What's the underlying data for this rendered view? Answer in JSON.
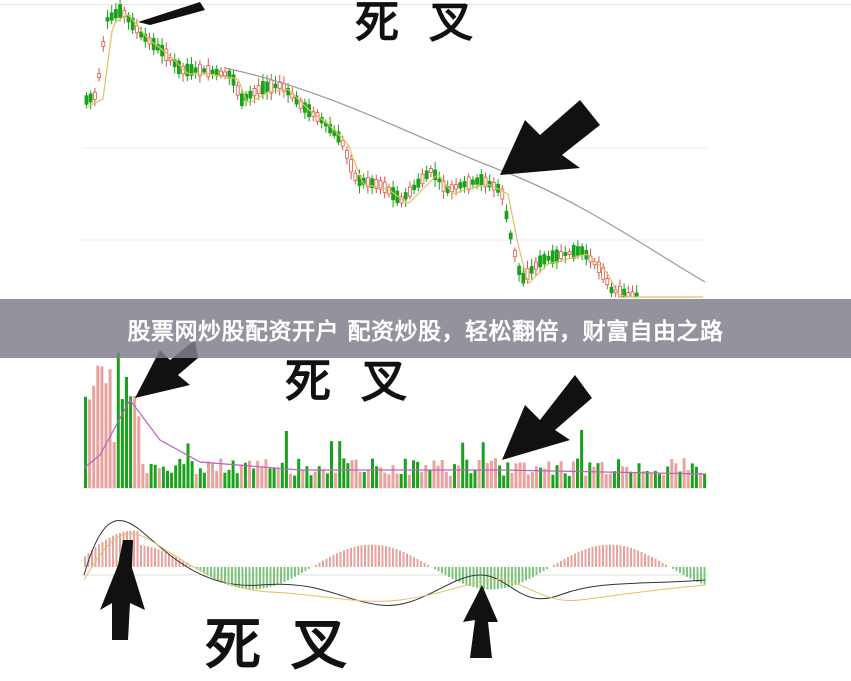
{
  "banner": {
    "text": "股票网炒股配资开户 配资炒股，轻松翻倍，财富自由之路"
  },
  "annotations": {
    "price_label": "死叉",
    "volume_label": "死叉",
    "macd_label": "死叉"
  },
  "colors": {
    "up": "#e0554f",
    "down": "#1aa31a",
    "ma_short": "#e0c060",
    "ma_long": "#999999",
    "banner_bg": "#80808c",
    "arrow": "#111111"
  }
}
